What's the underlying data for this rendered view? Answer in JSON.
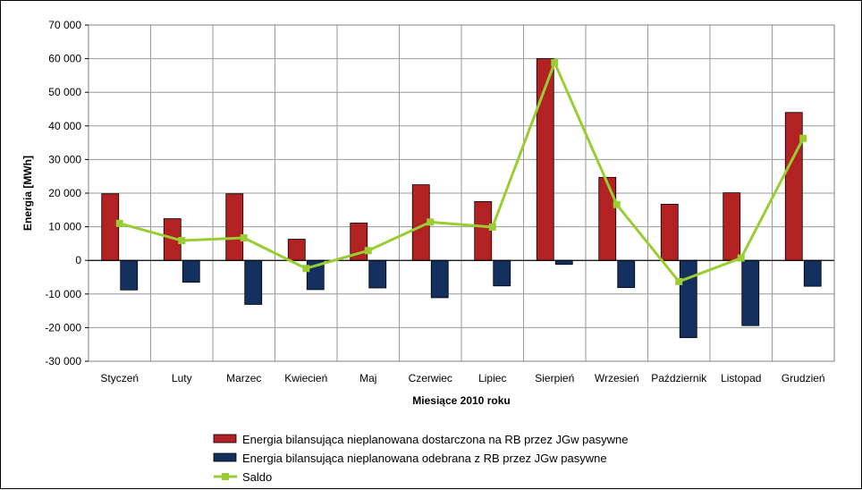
{
  "chart_data": {
    "type": "bar",
    "xlabel": "Miesiące 2010  roku",
    "ylabel": "Energia [MWh]",
    "ylim": [
      -30000,
      70000
    ],
    "ytick_step": 10000,
    "ytick_labels": [
      "70 000",
      "60 000",
      "50 000",
      "40 000",
      "30 000",
      "20 000",
      "10 000",
      "0",
      "-10 000",
      "-20 000",
      "-30 000"
    ],
    "grid": true,
    "legend_position": "bottom",
    "categories": [
      "Styczeń",
      "Luty",
      "Marzec",
      "Kwiecień",
      "Maj",
      "Czerwiec",
      "Lipiec",
      "Sierpień",
      "Wrzesień",
      "Październik",
      "Listopad",
      "Grudzień"
    ],
    "series": [
      {
        "name": "Energia bilansująca nieplanowana  dostarczona na RB przez JGw pasywne",
        "kind": "bar",
        "color": "#B22222",
        "values": [
          19800,
          12400,
          19800,
          6300,
          11100,
          22500,
          17500,
          60000,
          24700,
          16700,
          20100,
          44000
        ]
      },
      {
        "name": "Energia bilansująca nieplanowana  odebrana z RB przez JGw pasywne",
        "kind": "bar",
        "color": "#14305E",
        "values": [
          -8800,
          -6500,
          -13100,
          -8700,
          -8200,
          -11100,
          -7600,
          -1200,
          -8100,
          -23000,
          -19400,
          -7700
        ]
      },
      {
        "name": "Saldo",
        "kind": "line",
        "color": "#9ACD32",
        "values": [
          11000,
          5900,
          6700,
          -2400,
          2900,
          11400,
          9900,
          58800,
          16600,
          -6300,
          700,
          36300
        ]
      }
    ]
  }
}
